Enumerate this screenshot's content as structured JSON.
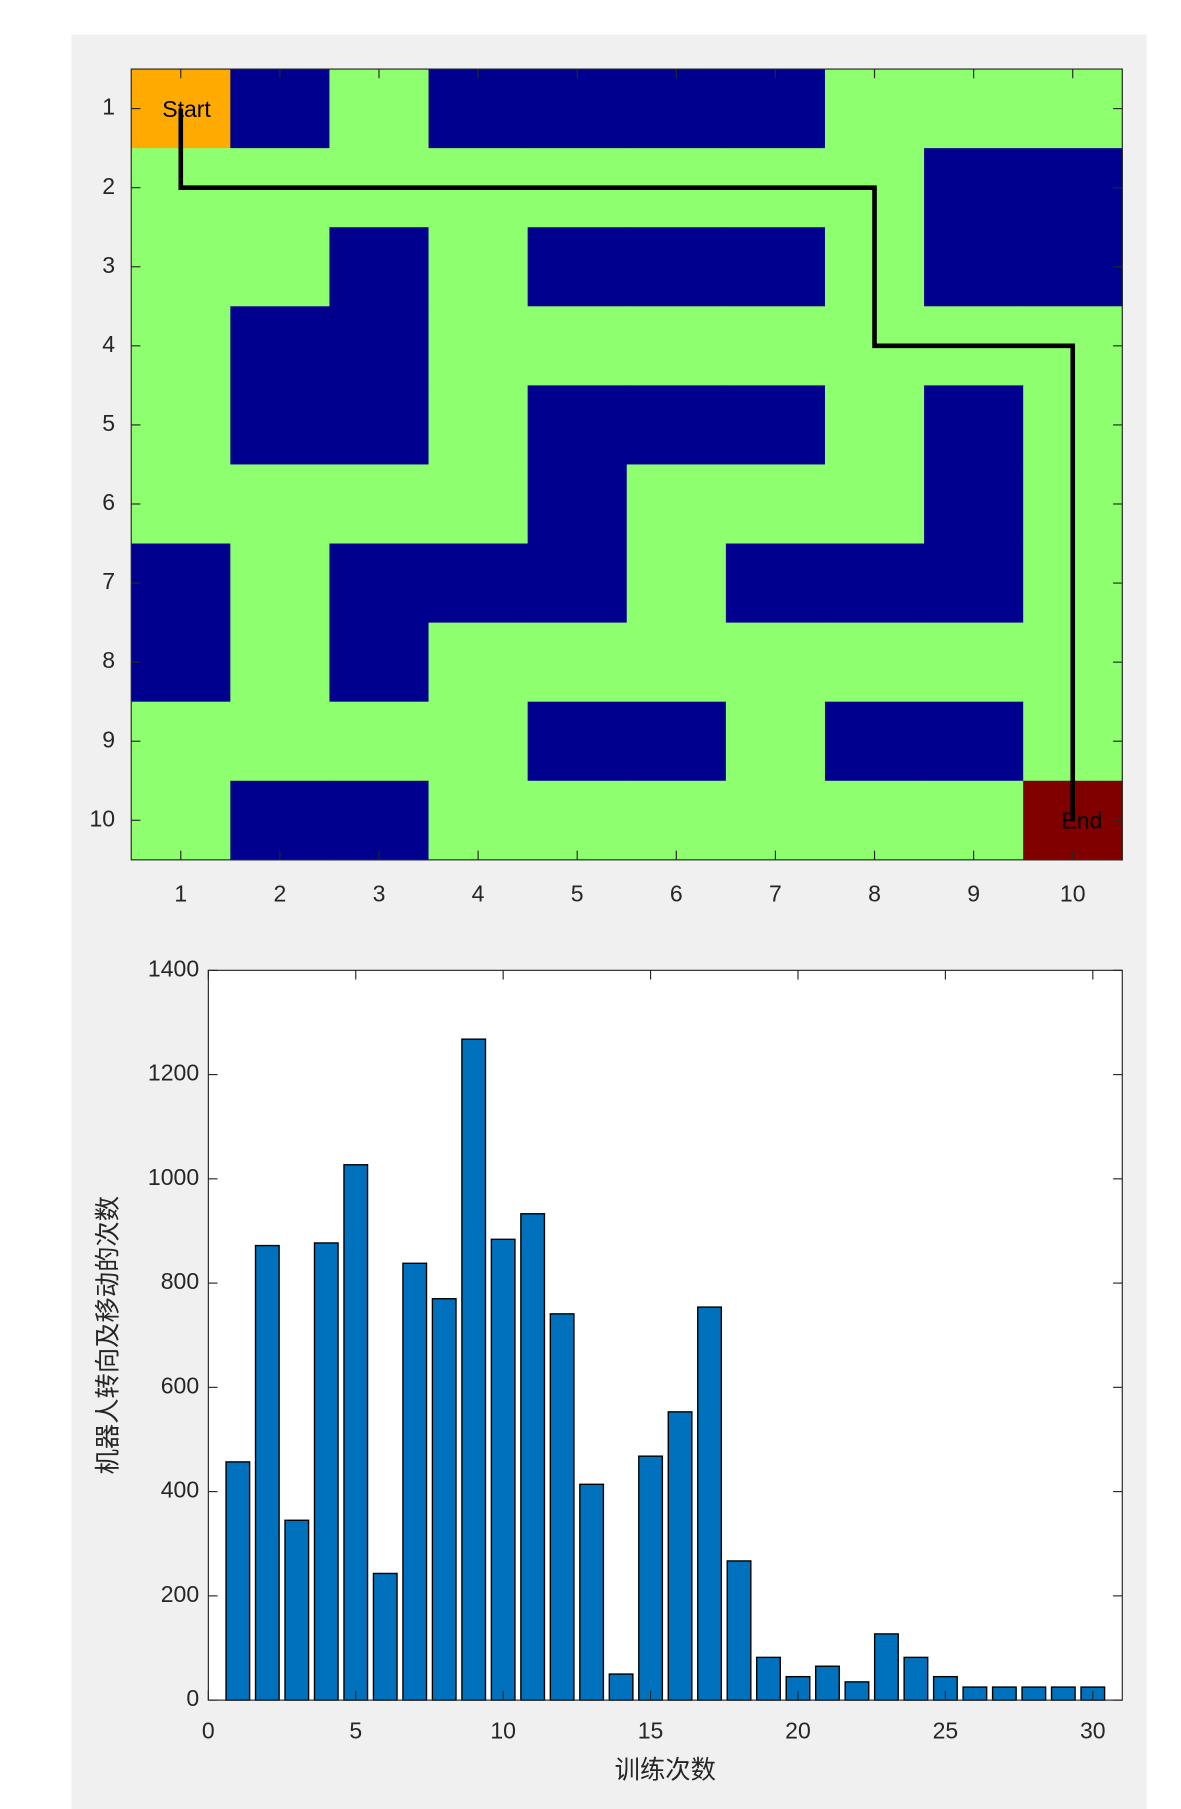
{
  "chart_data": [
    {
      "type": "heatmap",
      "z": [
        [
          2,
          1,
          0,
          1,
          1,
          1,
          1,
          0,
          0,
          0
        ],
        [
          0,
          0,
          0,
          0,
          0,
          0,
          0,
          0,
          1,
          1
        ],
        [
          0,
          0,
          1,
          0,
          1,
          1,
          1,
          0,
          1,
          1
        ],
        [
          0,
          1,
          1,
          0,
          0,
          0,
          0,
          0,
          0,
          0
        ],
        [
          0,
          1,
          1,
          0,
          1,
          1,
          1,
          0,
          1,
          0
        ],
        [
          0,
          0,
          0,
          0,
          1,
          0,
          0,
          0,
          1,
          0
        ],
        [
          1,
          0,
          1,
          1,
          1,
          0,
          1,
          1,
          1,
          0
        ],
        [
          1,
          0,
          1,
          0,
          0,
          0,
          0,
          0,
          0,
          0
        ],
        [
          0,
          0,
          0,
          0,
          1,
          1,
          0,
          1,
          1,
          0
        ],
        [
          0,
          1,
          1,
          0,
          0,
          0,
          0,
          0,
          0,
          3
        ]
      ],
      "colormap": [
        "#8eff6e",
        "#00008f",
        "#ffaa00",
        "#800000"
      ],
      "xlim": [
        0.5,
        10.5
      ],
      "ylim": [
        0.5,
        10.5
      ],
      "y_reversed": true,
      "xticks": [
        1,
        2,
        3,
        4,
        5,
        6,
        7,
        8,
        9,
        10
      ],
      "yticks": [
        1,
        2,
        3,
        4,
        5,
        6,
        7,
        8,
        9,
        10
      ],
      "path": {
        "x": [
          1,
          1,
          8,
          8,
          10,
          10
        ],
        "y": [
          1,
          2,
          2,
          4,
          4,
          10
        ],
        "color": "#000000"
      },
      "annotations": [
        {
          "text": "Start",
          "x": 1,
          "y": 1
        },
        {
          "text": "End",
          "x": 10,
          "y": 10
        }
      ]
    },
    {
      "type": "bar",
      "x": [
        1,
        2,
        3,
        4,
        5,
        6,
        7,
        8,
        9,
        10,
        11,
        12,
        13,
        14,
        15,
        16,
        17,
        18,
        19,
        20,
        21,
        22,
        23,
        24,
        25,
        26,
        27,
        28,
        29,
        30
      ],
      "values": [
        457,
        872,
        345,
        877,
        1027,
        243,
        838,
        770,
        1268,
        884,
        933,
        741,
        414,
        50,
        468,
        553,
        754,
        267,
        82,
        45,
        65,
        35,
        127,
        82,
        45,
        25,
        25,
        25,
        25,
        25
      ],
      "color": "#0072bd",
      "xlim": [
        0,
        31
      ],
      "ylim": [
        0,
        1400
      ],
      "xticks": [
        0,
        5,
        10,
        15,
        20,
        25,
        30
      ],
      "yticks": [
        0,
        200,
        400,
        600,
        800,
        1000,
        1200,
        1400
      ],
      "xlabel": "训练次数",
      "ylabel": "机器人转向及移动的次数"
    }
  ]
}
